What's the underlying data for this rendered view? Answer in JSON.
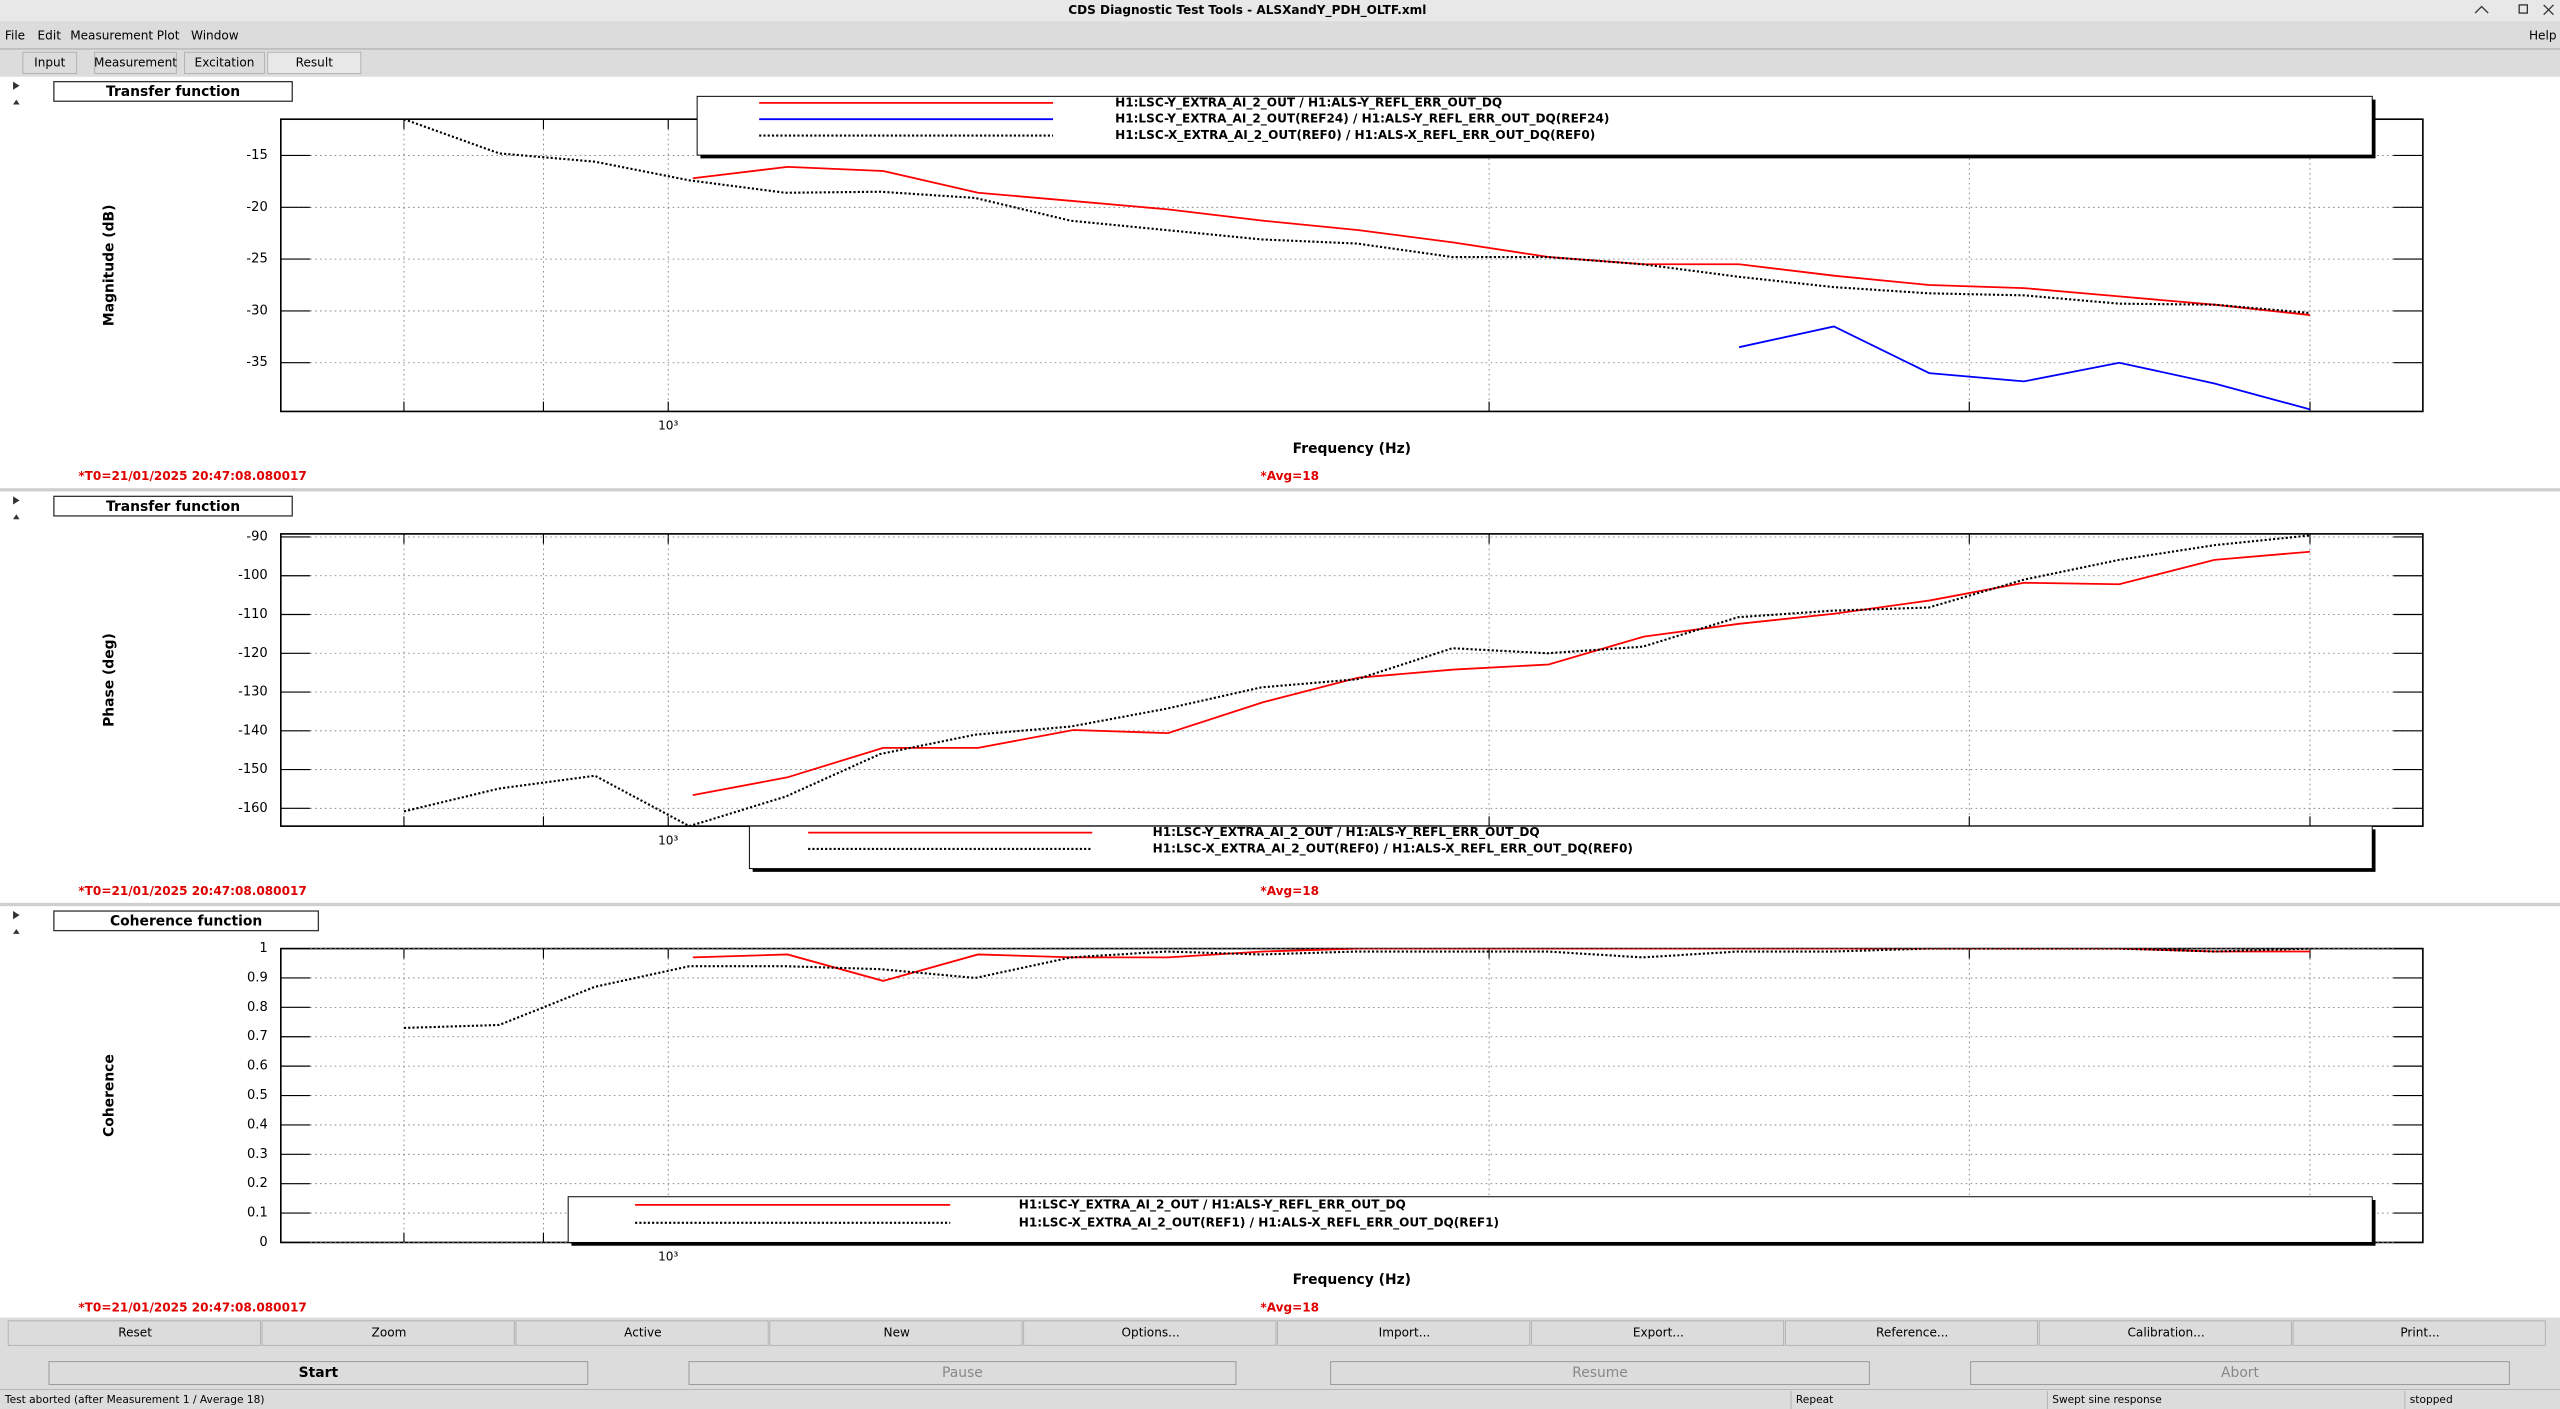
{
  "window": {
    "title": "CDS Diagnostic Test Tools - ALSXandY_PDH_OLTF.xml"
  },
  "menu": [
    "File",
    "Edit",
    "Measurement",
    "Plot",
    "Window"
  ],
  "help": "Help",
  "tabs": [
    "Input",
    "Measurement",
    "Excitation",
    "Result"
  ],
  "chart_data": [
    {
      "type": "line",
      "title": "Transfer function",
      "y_label": "Magnitude (dB)",
      "x_label": "Frequency (Hz)",
      "annotations": [
        "*T0=21/01/2025 20:47:08.080017",
        "*Avg=18"
      ],
      "log_x": true,
      "xlim": [
        721,
        4400
      ],
      "xticks": [
        {
          "value": 1000,
          "label": "10³"
        }
      ],
      "xgrid": [
        800,
        900,
        1000,
        2000,
        3000,
        4000
      ],
      "ylim": [
        -39.7,
        -11.5
      ],
      "yticks": [
        -35,
        -30,
        -25,
        -20,
        -15
      ],
      "grid": true,
      "legend": "upper center",
      "series": [
        {
          "name": "H1:LSC-Y_EXTRA_AI_2_OUT / H1:ALS-Y_REFL_ERR_OUT_DQ",
          "color": "#ff0000",
          "linestyle": "solid",
          "x": [
            1021,
            1106,
            1199,
            1299,
            1408,
            1525,
            1653,
            1791,
            1941,
            2103,
            2279,
            2470,
            2676,
            2900,
            3142,
            3405,
            3690,
            4000
          ],
          "values": [
            -17.2,
            -16.1,
            -16.5,
            -18.6,
            -19.4,
            -20.2,
            -21.3,
            -22.2,
            -23.4,
            -24.8,
            -25.5,
            -25.5,
            -26.6,
            -27.5,
            -27.8,
            -28.6,
            -29.4,
            -30.4
          ]
        },
        {
          "name": "H1:LSC-Y_EXTRA_AI_2_OUT(REF24) / H1:ALS-Y_REFL_ERR_OUT_DQ(REF24)",
          "color": "#0000ff",
          "linestyle": "solid",
          "x": [
            2470,
            2676,
            2900,
            3142,
            3405,
            3690,
            4000
          ],
          "values": [
            -33.5,
            -31.5,
            -36,
            -36.8,
            -35,
            -37,
            -39.5
          ]
        },
        {
          "name": "H1:LSC-X_EXTRA_AI_2_OUT(REF0) / H1:ALS-X_REFL_ERR_OUT_DQ(REF0)",
          "color": "#000000",
          "linestyle": "dotted",
          "x": [
            800,
            867,
            940,
            1018,
            1104,
            1196,
            1296,
            1405,
            1523,
            1650,
            1789,
            1939,
            2101,
            2277,
            2468,
            2675,
            2899,
            3142,
            3405,
            3691,
            4000
          ],
          "values": [
            -11.5,
            -14.8,
            -15.6,
            -17.4,
            -18.6,
            -18.5,
            -19.1,
            -21.3,
            -22.2,
            -23.1,
            -23.5,
            -24.8,
            -24.8,
            -25.5,
            -26.7,
            -27.7,
            -28.3,
            -28.5,
            -29.3,
            -29.4,
            -30.2
          ]
        }
      ]
    },
    {
      "type": "line",
      "title": "Transfer function",
      "y_label": "Phase (deg)",
      "x_label": "Frequency (Hz)",
      "annotations": [
        "*T0=21/01/2025 20:47:08.080017",
        "*Avg=18"
      ],
      "log_x": true,
      "xlim": [
        721,
        4400
      ],
      "xticks": [
        {
          "value": 1000,
          "label": "10³"
        }
      ],
      "xgrid": [
        800,
        900,
        1000,
        2000,
        3000,
        4000
      ],
      "ylim": [
        -164.6,
        -89.2
      ],
      "yticks": [
        -160,
        -150,
        -140,
        -130,
        -120,
        -110,
        -100,
        -90
      ],
      "grid": true,
      "legend": "lower right",
      "series": [
        {
          "name": "H1:LSC-Y_EXTRA_AI_2_OUT / H1:ALS-Y_REFL_ERR_OUT_DQ",
          "color": "#ff0000",
          "linestyle": "solid",
          "x": [
            1021,
            1106,
            1199,
            1299,
            1408,
            1525,
            1653,
            1791,
            1941,
            2103,
            2279,
            2470,
            2676,
            2900,
            3142,
            3405,
            3690,
            4000
          ],
          "values": [
            -156.6,
            -152,
            -144.4,
            -144.4,
            -139.8,
            -140.6,
            -132.6,
            -126.3,
            -124.2,
            -122.9,
            -115.7,
            -112.4,
            -109.8,
            -106.4,
            -101.8,
            -102.2,
            -95.9,
            -93.8
          ]
        },
        {
          "name": "H1:LSC-X_EXTRA_AI_2_OUT(REF0) / H1:ALS-X_REFL_ERR_OUT_DQ(REF0)",
          "color": "#000000",
          "linestyle": "dotted",
          "x": [
            800,
            867,
            940,
            1018,
            1104,
            1196,
            1296,
            1405,
            1523,
            1650,
            1789,
            1939,
            2101,
            2277,
            2468,
            2675,
            2899,
            3142,
            3405,
            3691,
            4000
          ],
          "values": [
            -160.8,
            -154.9,
            -151.6,
            -164.6,
            -157,
            -146,
            -141,
            -138.9,
            -134.3,
            -128.8,
            -126.7,
            -118.7,
            -120,
            -118.3,
            -110.7,
            -109,
            -108.2,
            -101,
            -95.9,
            -92.1,
            -89.6
          ]
        }
      ]
    },
    {
      "type": "line",
      "title": "Coherence function",
      "y_label": "Coherence",
      "x_label": "Frequency (Hz)",
      "annotations": [
        "*T0=21/01/2025 20:47:08.080017",
        "*Avg=18"
      ],
      "log_x": true,
      "xlim": [
        721,
        4400
      ],
      "xticks": [
        {
          "value": 1000,
          "label": "10³"
        }
      ],
      "xgrid": [
        800,
        900,
        1000,
        2000,
        3000,
        4000
      ],
      "ylim": [
        0,
        1
      ],
      "yticks": [
        0,
        0.1,
        0.2,
        0.3,
        0.4,
        0.5,
        0.6,
        0.7,
        0.8,
        0.9,
        1
      ],
      "grid": true,
      "legend": "lower right",
      "series": [
        {
          "name": "H1:LSC-Y_EXTRA_AI_2_OUT / H1:ALS-Y_REFL_ERR_OUT_DQ",
          "color": "#ff0000",
          "linestyle": "solid",
          "x": [
            1021,
            1106,
            1199,
            1299,
            1408,
            1525,
            1653,
            1791,
            1941,
            2103,
            2279,
            2470,
            2676,
            2900,
            3142,
            3405,
            3690,
            4000
          ],
          "values": [
            0.97,
            0.98,
            0.89,
            0.98,
            0.97,
            0.97,
            0.99,
            1,
            1,
            1,
            1,
            1,
            1,
            1,
            1,
            1,
            0.99,
            0.99
          ]
        },
        {
          "name": "H1:LSC-X_EXTRA_AI_2_OUT(REF1) / H1:ALS-X_REFL_ERR_OUT_DQ(REF1)",
          "color": "#000000",
          "linestyle": "dotted",
          "x": [
            800,
            867,
            940,
            1018,
            1104,
            1196,
            1296,
            1405,
            1523,
            1650,
            1789,
            1939,
            2101,
            2277,
            2468,
            2675,
            2899,
            3142,
            3405,
            3691,
            4000
          ],
          "values": [
            0.73,
            0.74,
            0.87,
            0.94,
            0.94,
            0.93,
            0.9,
            0.97,
            0.99,
            0.98,
            0.99,
            0.99,
            0.99,
            0.97,
            0.99,
            0.99,
            1,
            1,
            1,
            0.99,
            1
          ]
        }
      ]
    }
  ],
  "buttons": [
    "Reset",
    "Zoom",
    "Active",
    "New",
    "Options...",
    "Import...",
    "Export...",
    "Reference...",
    "Calibration...",
    "Print..."
  ],
  "controls": [
    "Start",
    "Pause",
    "Resume",
    "Abort"
  ],
  "status": [
    "Test aborted (after Measurement 1 / Average 18)",
    "Repeat",
    "Swept sine response",
    "stopped"
  ]
}
